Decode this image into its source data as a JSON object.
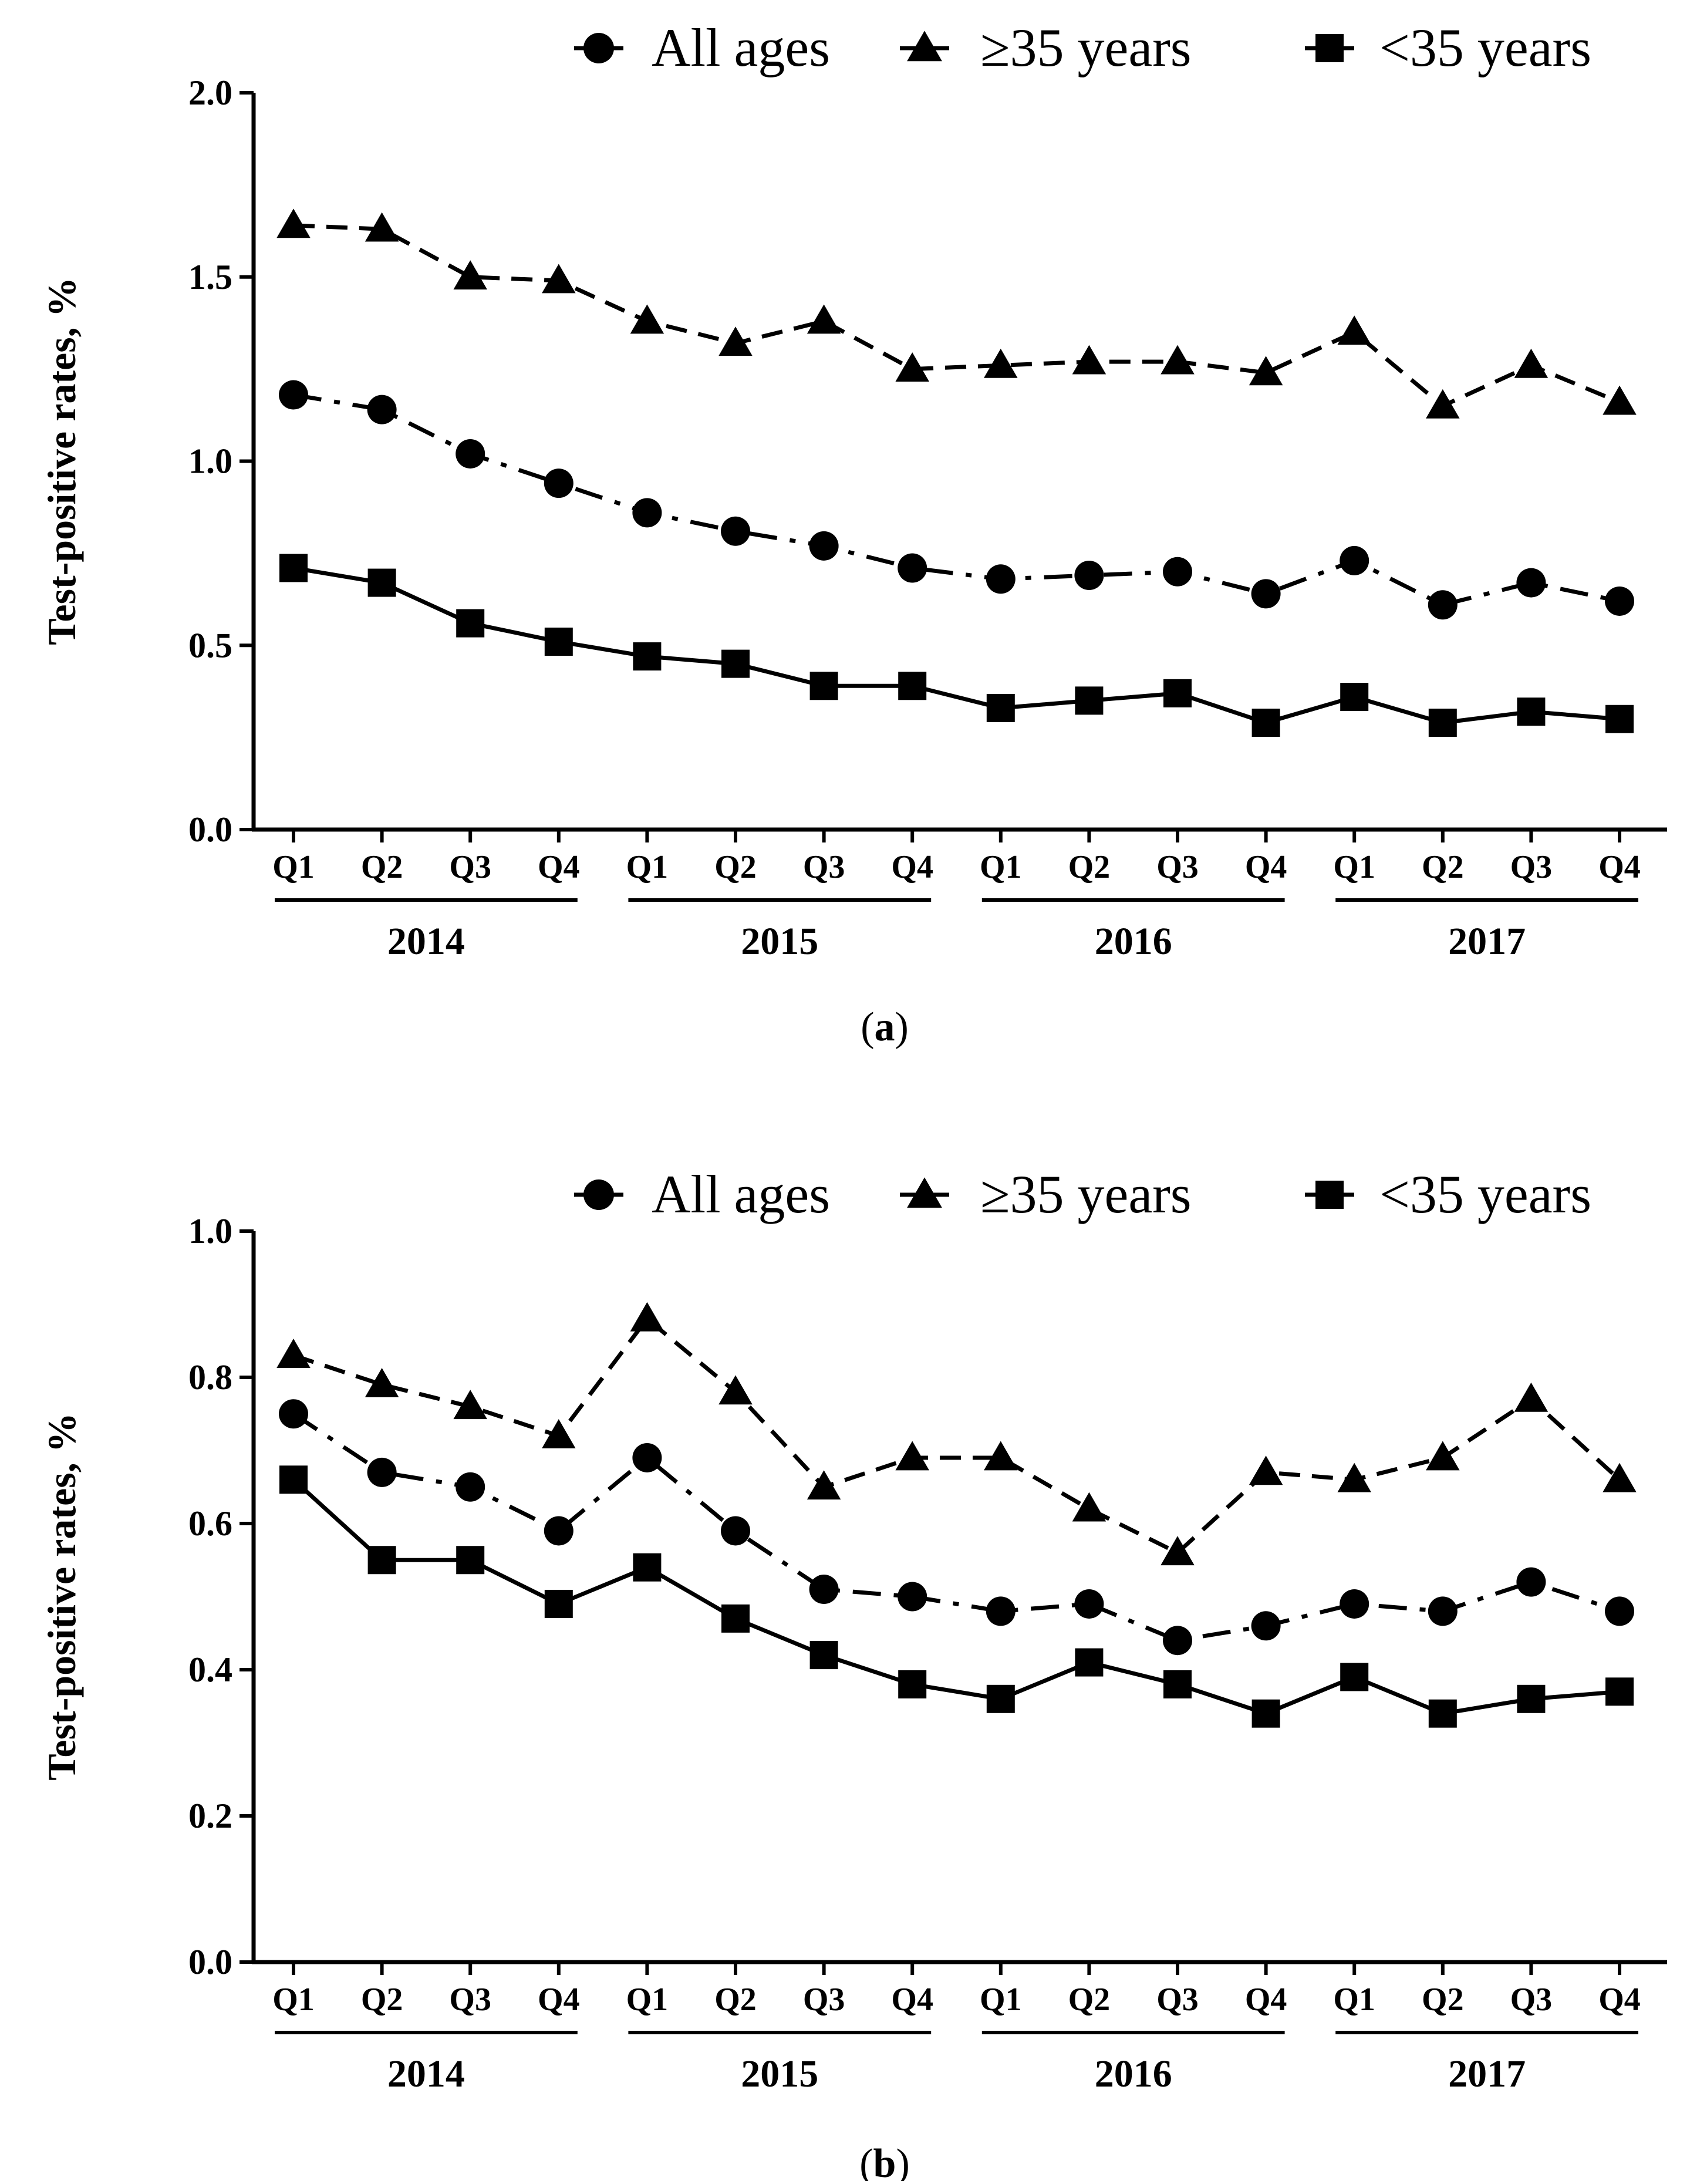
{
  "chart_data": [
    {
      "type": "line",
      "panel_label": "(a)",
      "panel_letter": "a",
      "ylabel": "Test-positive rates, %",
      "xlabel": "",
      "ylim": [
        0,
        2.0
      ],
      "yticks": [
        "0.0",
        "0.5",
        "1.0",
        "1.5",
        "2.0"
      ],
      "legend_position": "top-right",
      "grid": false,
      "categories": [
        "Q1",
        "Q2",
        "Q3",
        "Q4",
        "Q1",
        "Q2",
        "Q3",
        "Q4",
        "Q1",
        "Q2",
        "Q3",
        "Q4",
        "Q1",
        "Q2",
        "Q3",
        "Q4"
      ],
      "groups": [
        "2014",
        "2015",
        "2016",
        "2017"
      ],
      "series": [
        {
          "name": "All ages",
          "marker": "circle",
          "line": "dash-dot",
          "values": [
            1.18,
            1.14,
            1.02,
            0.94,
            0.86,
            0.81,
            0.77,
            0.71,
            0.68,
            0.69,
            0.7,
            0.64,
            0.73,
            0.61,
            0.67,
            0.62
          ]
        },
        {
          "name": "≥35 years",
          "marker": "triangle",
          "line": "dashed",
          "values": [
            1.64,
            1.63,
            1.5,
            1.49,
            1.38,
            1.32,
            1.38,
            1.25,
            1.26,
            1.27,
            1.27,
            1.24,
            1.35,
            1.15,
            1.26,
            1.16
          ]
        },
        {
          "name": "<35 years",
          "marker": "square",
          "line": "solid",
          "values": [
            0.71,
            0.67,
            0.56,
            0.51,
            0.47,
            0.45,
            0.39,
            0.39,
            0.33,
            0.35,
            0.37,
            0.29,
            0.36,
            0.29,
            0.32,
            0.3
          ]
        }
      ]
    },
    {
      "type": "line",
      "panel_label": "(b)",
      "panel_letter": "b",
      "ylabel": "Test-positive rates, %",
      "xlabel": "",
      "ylim": [
        0,
        1.0
      ],
      "yticks": [
        "0.0",
        "0.2",
        "0.4",
        "0.6",
        "0.8",
        "1.0"
      ],
      "legend_position": "top-right",
      "grid": false,
      "categories": [
        "Q1",
        "Q2",
        "Q3",
        "Q4",
        "Q1",
        "Q2",
        "Q3",
        "Q4",
        "Q1",
        "Q2",
        "Q3",
        "Q4",
        "Q1",
        "Q2",
        "Q3",
        "Q4"
      ],
      "groups": [
        "2014",
        "2015",
        "2016",
        "2017"
      ],
      "series": [
        {
          "name": "All ages",
          "marker": "circle",
          "line": "dash-dot",
          "values": [
            0.75,
            0.67,
            0.65,
            0.59,
            0.69,
            0.59,
            0.51,
            0.5,
            0.48,
            0.49,
            0.44,
            0.46,
            0.49,
            0.48,
            0.52,
            0.48
          ]
        },
        {
          "name": "≥35 years",
          "marker": "triangle",
          "line": "dashed",
          "values": [
            0.83,
            0.79,
            0.76,
            0.72,
            0.88,
            0.78,
            0.65,
            0.69,
            0.69,
            0.62,
            0.56,
            0.67,
            0.66,
            0.69,
            0.77,
            0.66
          ]
        },
        {
          "name": "<35 years",
          "marker": "square",
          "line": "solid",
          "values": [
            0.66,
            0.55,
            0.55,
            0.49,
            0.54,
            0.47,
            0.42,
            0.38,
            0.36,
            0.41,
            0.38,
            0.34,
            0.39,
            0.34,
            0.36,
            0.37
          ]
        }
      ]
    }
  ]
}
